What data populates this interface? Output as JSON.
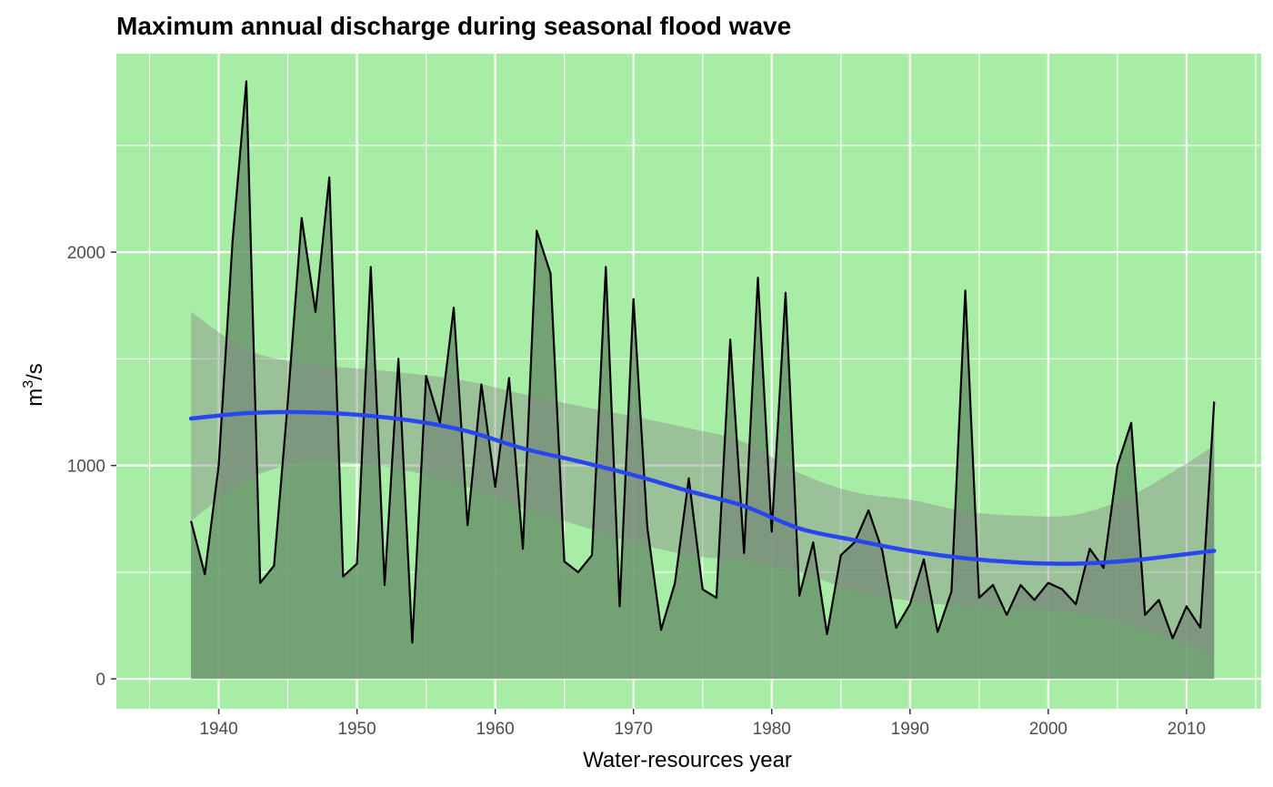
{
  "chart_data": {
    "type": "line",
    "title": "Maximum annual discharge during seasonal flood wave",
    "xlabel": "Water-resources year",
    "ylabel": "m3/s",
    "ylabel_base": "m",
    "ylabel_sup": "3",
    "ylabel_rest": "/s",
    "xlim": [
      1932.6,
      2015.4
    ],
    "ylim": [
      -140,
      2930
    ],
    "x_ticks": [
      1940,
      1950,
      1960,
      1970,
      1980,
      1990,
      2000,
      2010
    ],
    "x_tick_labels": [
      "1940",
      "1950",
      "1960",
      "1970",
      "1980",
      "1990",
      "2000",
      "2010"
    ],
    "y_ticks": [
      0,
      1000,
      2000
    ],
    "y_tick_labels": [
      "0",
      "1000",
      "2000"
    ],
    "grid": true,
    "panel_background": "#a8eda5",
    "colors": {
      "discharge_line": "#000000",
      "area_fill": "#6a946c",
      "smooth_line": "#2846f0",
      "ribbon_fill": "#8c8c8c",
      "grid": "#ffffff"
    },
    "series": [
      {
        "kind": "area_line",
        "x": [
          1938,
          1939,
          1940,
          1941,
          1942,
          1943,
          1944,
          1945,
          1946,
          1947,
          1948,
          1949,
          1950,
          1951,
          1952,
          1953,
          1954,
          1955,
          1956,
          1957,
          1958,
          1959,
          1960,
          1961,
          1962,
          1963,
          1964,
          1965,
          1966,
          1967,
          1968,
          1969,
          1970,
          1971,
          1972,
          1973,
          1974,
          1975,
          1976,
          1977,
          1978,
          1979,
          1980,
          1981,
          1982,
          1983,
          1984,
          1985,
          1986,
          1987,
          1988,
          1989,
          1990,
          1991,
          1992,
          1993,
          1994,
          1995,
          1996,
          1997,
          1998,
          1999,
          2000,
          2001,
          2002,
          2003,
          2004,
          2005,
          2006,
          2007,
          2008,
          2009,
          2010,
          2011,
          2012
        ],
        "values": [
          740,
          490,
          1000,
          2050,
          2800,
          450,
          530,
          1300,
          2160,
          1720,
          2350,
          480,
          540,
          1930,
          440,
          1500,
          170,
          1420,
          1200,
          1740,
          720,
          1380,
          900,
          1410,
          610,
          2100,
          1900,
          550,
          500,
          580,
          1930,
          340,
          1780,
          710,
          230,
          450,
          940,
          420,
          380,
          1590,
          590,
          1880,
          690,
          1810,
          390,
          640,
          210,
          580,
          640,
          790,
          600,
          240,
          350,
          560,
          220,
          410,
          1820,
          380,
          440,
          300,
          440,
          370,
          450,
          420,
          350,
          610,
          520,
          1000,
          1200,
          300,
          370,
          190,
          340,
          240,
          1300
        ]
      },
      {
        "kind": "smooth",
        "x": [
          1938,
          1942,
          1946,
          1950,
          1954,
          1958,
          1962,
          1966,
          1970,
          1974,
          1978,
          1982,
          1986,
          1990,
          1994,
          1998,
          2002,
          2006,
          2010,
          2012
        ],
        "values": [
          1220,
          1245,
          1250,
          1238,
          1210,
          1160,
          1080,
          1020,
          955,
          880,
          810,
          705,
          650,
          600,
          565,
          545,
          540,
          555,
          585,
          600
        ],
        "lower": [
          740,
          930,
          1015,
          1010,
          970,
          900,
          800,
          720,
          640,
          580,
          550,
          500,
          410,
          365,
          340,
          325,
          310,
          250,
          160,
          105
        ],
        "upper": [
          1720,
          1545,
          1480,
          1455,
          1430,
          1395,
          1335,
          1280,
          1230,
          1175,
          1110,
          965,
          875,
          840,
          785,
          765,
          770,
          860,
          1010,
          1095
        ]
      }
    ]
  }
}
